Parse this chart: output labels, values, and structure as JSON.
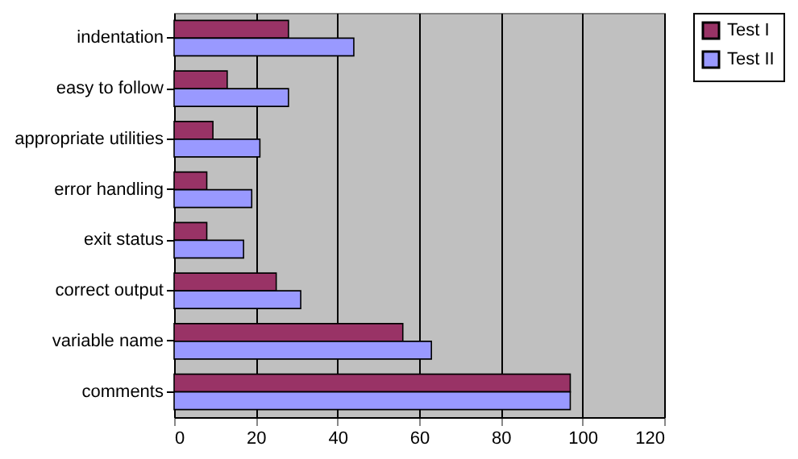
{
  "chart_data": {
    "type": "bar",
    "orientation": "horizontal",
    "categories": [
      "indentation",
      "easy to follow",
      "appropriate utilities",
      "error handling",
      "exit status",
      "correct output",
      "variable name",
      "comments"
    ],
    "series": [
      {
        "name": "Test I",
        "color": "#993366",
        "values": [
          28,
          13,
          9.5,
          8,
          8,
          25,
          56,
          97
        ]
      },
      {
        "name": "Test II",
        "color": "#9999ff",
        "values": [
          44,
          28,
          21,
          19,
          17,
          31,
          63,
          97
        ]
      }
    ],
    "xlim": [
      0,
      120
    ],
    "xticks": [
      0,
      20,
      40,
      60,
      80,
      100,
      120
    ],
    "grid": "x",
    "legend": "right"
  }
}
